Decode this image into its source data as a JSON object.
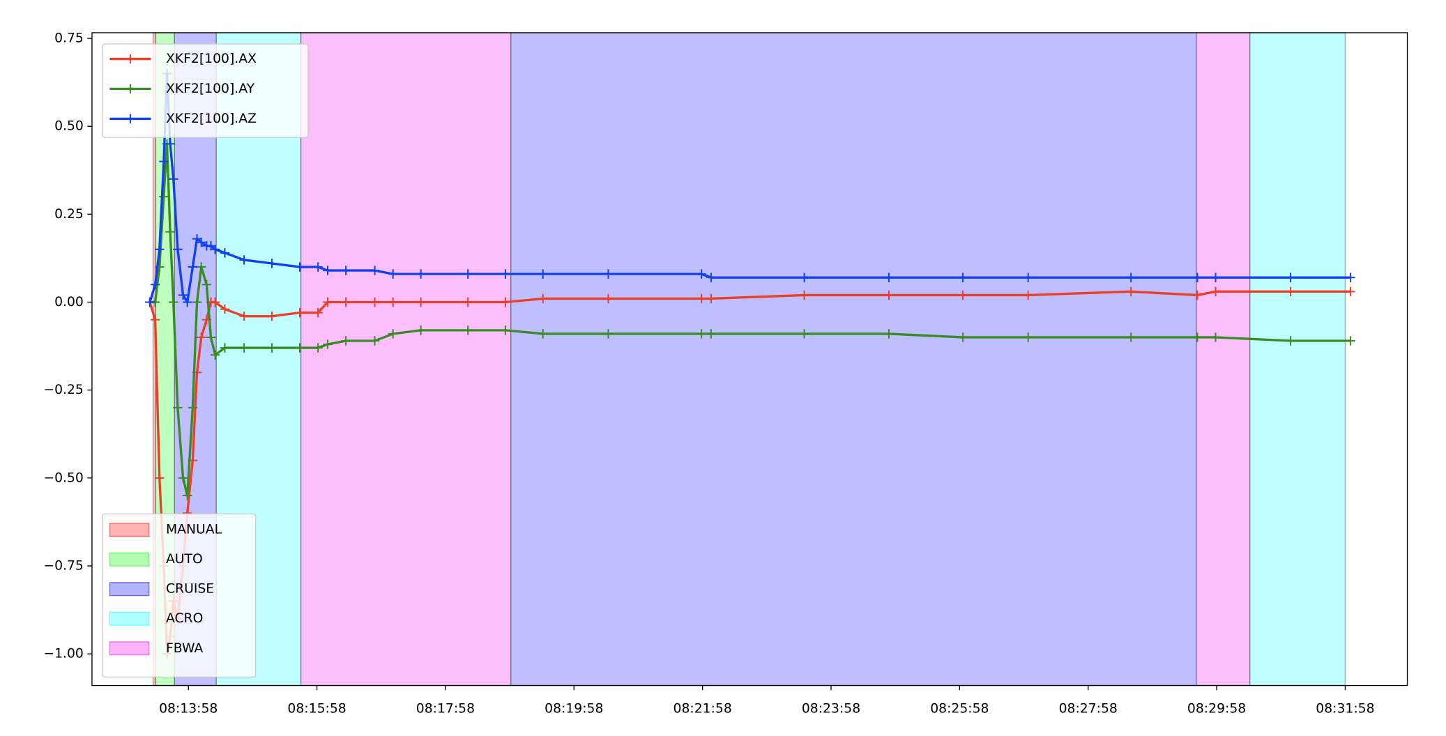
{
  "chart_data": {
    "type": "line",
    "x": [
      29602,
      29607,
      29611,
      29615,
      29618,
      29621,
      29624,
      29628,
      29633,
      29637,
      29642,
      29646,
      29650,
      29655,
      29659,
      29663,
      29672,
      29690,
      29716,
      29742,
      29759,
      29768,
      29785,
      29812,
      29829,
      29855,
      29899,
      29934,
      29969,
      30030,
      30117,
      30126,
      30213,
      30292,
      30361,
      30422,
      30518,
      30580,
      30597,
      30667,
      30723
    ],
    "series": [
      {
        "name": "XKF2[100].AX",
        "color": "#e8402a",
        "values": [
          0,
          -0.05,
          -0.5,
          -0.75,
          -1.0,
          -0.95,
          -0.85,
          -0.9,
          -0.75,
          -0.6,
          -0.45,
          -0.2,
          -0.1,
          -0.05,
          0,
          0,
          -0.02,
          -0.04,
          -0.04,
          -0.03,
          -0.03,
          0,
          0,
          0,
          0,
          0,
          0,
          0,
          0.01,
          0.01,
          0.01,
          0.01,
          0.02,
          0.02,
          0.02,
          0.02,
          0.03,
          0.02,
          0.03,
          0.03,
          0.03
        ]
      },
      {
        "name": "XKF2[100].AY",
        "color": "#3a8a25",
        "values": [
          0,
          0,
          0.1,
          0.3,
          0.45,
          0.2,
          0,
          -0.3,
          -0.5,
          -0.55,
          -0.3,
          0,
          0.1,
          0.05,
          -0.1,
          -0.15,
          -0.13,
          -0.13,
          -0.13,
          -0.13,
          -0.13,
          -0.12,
          -0.11,
          -0.11,
          -0.09,
          -0.08,
          -0.08,
          -0.08,
          -0.09,
          -0.09,
          -0.09,
          -0.09,
          -0.09,
          -0.09,
          -0.1,
          -0.1,
          -0.1,
          -0.1,
          -0.1,
          -0.11,
          -0.11
        ]
      },
      {
        "name": "XKF2[100].AZ",
        "color": "#1040f0",
        "values": [
          0,
          0.05,
          0.15,
          0.4,
          0.65,
          0.45,
          0.35,
          0.15,
          0.02,
          0,
          0.1,
          0.18,
          0.17,
          0.16,
          0.16,
          0.15,
          0.14,
          0.12,
          0.11,
          0.1,
          0.1,
          0.09,
          0.09,
          0.09,
          0.08,
          0.08,
          0.08,
          0.08,
          0.08,
          0.08,
          0.08,
          0.07,
          0.07,
          0.07,
          0.07,
          0.07,
          0.07,
          0.07,
          0.07,
          0.07,
          0.07
        ]
      }
    ],
    "modes": [
      {
        "name": "MANUAL",
        "color": "#ff0000"
      },
      {
        "name": "AUTO",
        "color": "#00ff00"
      },
      {
        "name": "CRUISE",
        "color": "#0000ff"
      },
      {
        "name": "ACRO",
        "color": "#00ffff"
      },
      {
        "name": "FBWA",
        "color": "#ee00ee"
      }
    ],
    "spans": [
      {
        "mode": 0,
        "start": 29605,
        "end": 29607.5
      },
      {
        "mode": 1,
        "start": 29607.5,
        "end": 29625
      },
      {
        "mode": 2,
        "start": 29625,
        "end": 29664
      },
      {
        "mode": 3,
        "start": 29664,
        "end": 29743
      },
      {
        "mode": 4,
        "start": 29743,
        "end": 29939
      },
      {
        "mode": 2,
        "start": 29939,
        "end": 30579
      },
      {
        "mode": 4,
        "start": 30579,
        "end": 30629
      },
      {
        "mode": 3,
        "start": 30629,
        "end": 30718
      }
    ],
    "xlim": [
      29548,
      30776
    ],
    "xticks": [
      {
        "value": 29638,
        "label": "08:13:58"
      },
      {
        "value": 29758,
        "label": "08:15:58"
      },
      {
        "value": 29878,
        "label": "08:17:58"
      },
      {
        "value": 29998,
        "label": "08:19:58"
      },
      {
        "value": 30118,
        "label": "08:21:58"
      },
      {
        "value": 30238,
        "label": "08:23:58"
      },
      {
        "value": 30358,
        "label": "08:25:58"
      },
      {
        "value": 30478,
        "label": "08:27:58"
      },
      {
        "value": 30598,
        "label": "08:29:58"
      },
      {
        "value": 30718,
        "label": "08:31:58"
      }
    ],
    "ylim": [
      -1.09,
      0.766
    ],
    "yticks": [
      {
        "value": -1.0,
        "label": "−1.00"
      },
      {
        "value": -0.75,
        "label": "−0.75"
      },
      {
        "value": -0.5,
        "label": "−0.50"
      },
      {
        "value": -0.25,
        "label": "−0.25"
      },
      {
        "value": 0,
        "label": "0.00"
      },
      {
        "value": 0.25,
        "label": "0.25"
      },
      {
        "value": 0.5,
        "label": "0.50"
      },
      {
        "value": 0.75,
        "label": "0.75"
      }
    ],
    "legend": "upper left",
    "mode_legend": "lower left"
  }
}
